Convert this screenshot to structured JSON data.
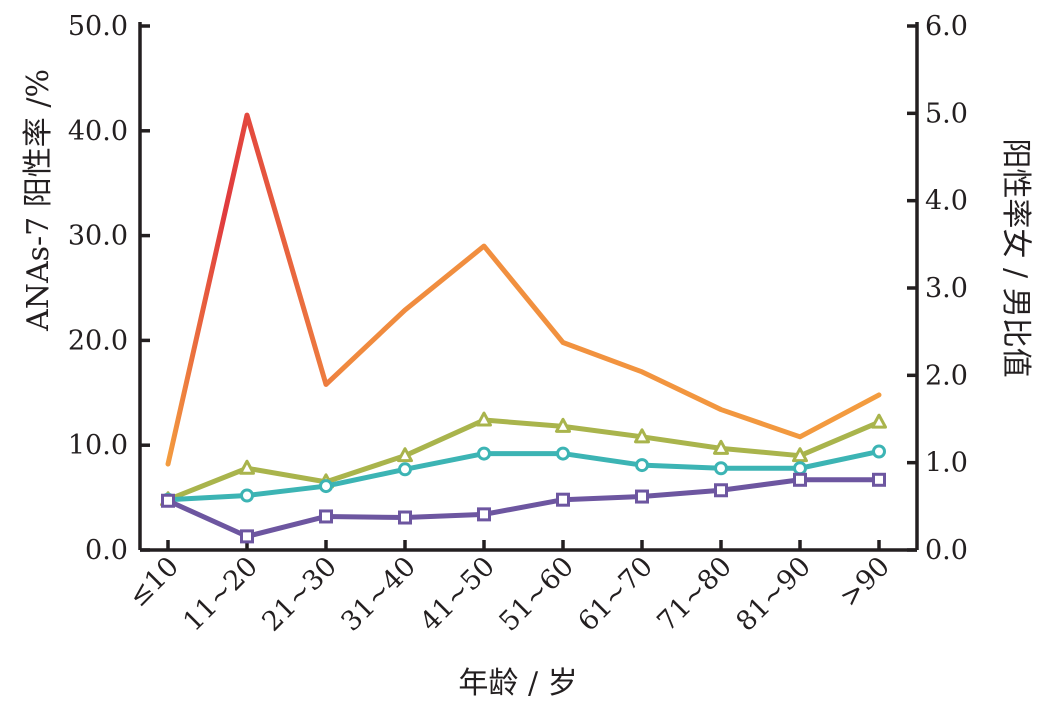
{
  "chart_data": {
    "type": "line",
    "title": "",
    "xlabel": "年龄 / 岁",
    "ylabel_left": "ANAs-7 阳性率 /%",
    "ylabel_right": "阳性率女 / 男比值",
    "categories": [
      "≤10",
      "11~20",
      "21~30",
      "31~40",
      "41~50",
      "51~60",
      "61~70",
      "71~80",
      "81~90",
      ">90"
    ],
    "left_axis": {
      "ylim": [
        0,
        50
      ],
      "ticks": [
        "0.0",
        "10.0",
        "20.0",
        "30.0",
        "40.0",
        "50.0"
      ]
    },
    "right_axis": {
      "ylim": [
        0,
        6
      ],
      "ticks": [
        "0.0",
        "1.0",
        "2.0",
        "3.0",
        "4.0",
        "5.0",
        "6.0"
      ]
    },
    "grid": false,
    "legend": "none",
    "series": [
      {
        "axis": "left",
        "marker": "none",
        "color_start": "#e03a3e",
        "color_end": "#f39c3f",
        "gradient": true,
        "values": [
          8.2,
          41.5,
          15.8,
          22.9,
          29.0,
          19.8,
          17.0,
          13.4,
          10.8,
          14.8
        ]
      },
      {
        "axis": "left",
        "marker": "triangle",
        "color": "#a9b44c",
        "values": [
          4.8,
          7.8,
          6.5,
          9.0,
          12.4,
          11.8,
          10.8,
          9.7,
          9.0,
          12.2
        ]
      },
      {
        "axis": "left",
        "marker": "circle",
        "color": "#3cb4b4",
        "values": [
          4.8,
          5.2,
          6.1,
          7.7,
          9.2,
          9.2,
          8.1,
          7.8,
          7.8,
          9.4
        ]
      },
      {
        "axis": "left",
        "marker": "square",
        "color": "#6d56a0",
        "values": [
          4.7,
          1.3,
          3.2,
          3.1,
          3.4,
          4.8,
          5.1,
          5.7,
          6.7,
          6.7
        ]
      }
    ]
  }
}
